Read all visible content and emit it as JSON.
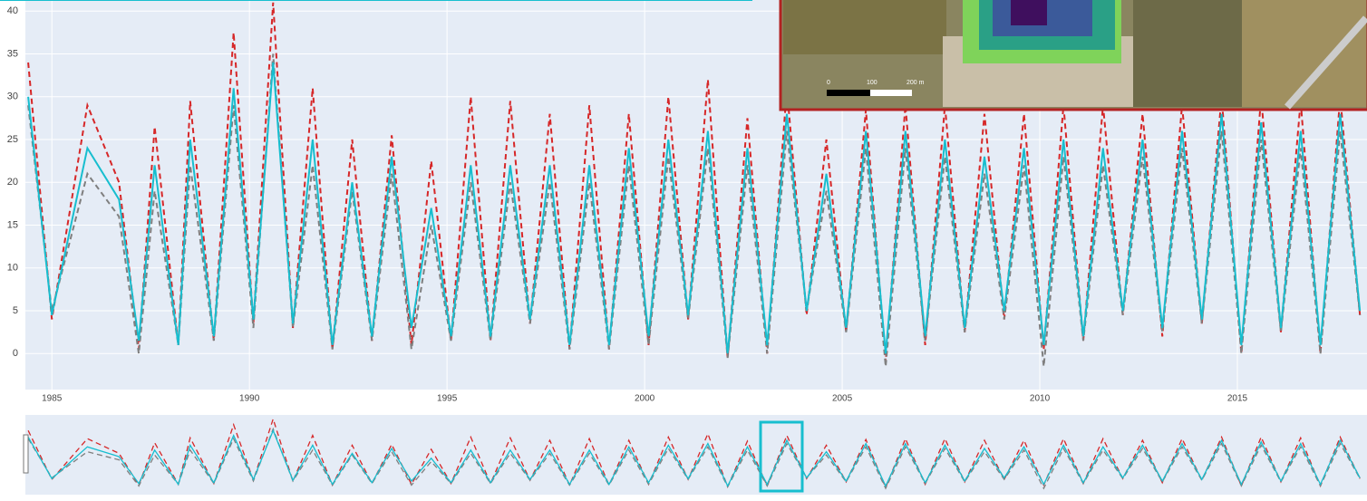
{
  "chart_data": {
    "type": "line",
    "x": [
      1984.4,
      1985.0,
      1985.9,
      1986.7,
      1987.2,
      1987.6,
      1988.2,
      1988.5,
      1989.1,
      1989.6,
      1990.1,
      1990.6,
      1991.1,
      1991.6,
      1992.1,
      1992.6,
      1993.1,
      1993.6,
      1994.1,
      1994.6,
      1995.1,
      1995.6,
      1996.1,
      1996.6,
      1997.1,
      1997.6,
      1998.1,
      1998.6,
      1999.1,
      1999.6,
      2000.1,
      2000.6,
      2001.1,
      2001.6,
      2002.1,
      2002.6,
      2003.1,
      2003.6,
      2004.1,
      2004.6,
      2005.1,
      2005.6,
      2006.1,
      2006.6,
      2007.1,
      2007.6,
      2008.1,
      2008.6,
      2009.1,
      2009.6,
      2010.1,
      2010.6,
      2011.1,
      2011.6,
      2012.1,
      2012.6,
      2013.1,
      2013.6,
      2014.1,
      2014.6,
      2015.1,
      2015.6,
      2016.1,
      2016.6,
      2017.1,
      2017.6,
      2018.1
    ],
    "series": [
      {
        "color": "#d62728",
        "dash": true,
        "values": [
          34,
          4,
          29,
          20,
          0.5,
          26.5,
          1,
          29.5,
          1.5,
          37.5,
          3.5,
          41,
          3,
          31,
          0.5,
          25,
          1.5,
          25.5,
          1,
          22.5,
          1.5,
          30,
          1.5,
          29.5,
          3.5,
          28,
          0.5,
          29,
          0.5,
          28,
          1,
          30,
          4,
          32,
          -0.5,
          27.5,
          0,
          31,
          4.5,
          25,
          2.5,
          28.5,
          -1,
          29,
          1,
          29,
          2.5,
          28,
          4,
          28,
          0.5,
          29,
          1.5,
          29,
          4.5,
          28,
          2,
          29,
          3.5,
          30,
          0,
          30,
          2.5,
          29.5,
          0,
          30,
          4.5
        ]
      },
      {
        "color": "#7f7f7f",
        "dash": true,
        "values": [
          29,
          5,
          21,
          16,
          0,
          19,
          1,
          22,
          1.5,
          29,
          3,
          35,
          3,
          22,
          0.5,
          19,
          1.5,
          21,
          0.5,
          15,
          1.5,
          20,
          1.5,
          20,
          3.5,
          20,
          0.5,
          20,
          0.5,
          22,
          1,
          23,
          4,
          24,
          -0.5,
          22,
          0,
          26,
          5,
          19,
          2.5,
          24,
          -1.5,
          24,
          1.5,
          23,
          2.5,
          21,
          4,
          22,
          -1.5,
          23,
          1.5,
          22,
          4.5,
          23,
          2.5,
          24,
          3.5,
          26,
          0,
          25,
          2.5,
          24,
          0,
          26,
          4.5
        ]
      },
      {
        "color": "#17becf",
        "dash": false,
        "values": [
          30,
          4.5,
          24,
          18,
          1.5,
          22,
          1,
          25,
          2,
          31,
          4,
          34,
          3.5,
          25,
          1,
          20,
          2,
          23,
          3,
          17,
          2,
          22,
          2,
          22,
          4,
          22,
          1,
          22,
          1,
          24,
          2,
          25,
          4.5,
          26,
          0,
          24,
          1,
          28,
          5,
          21,
          3,
          26,
          0,
          26,
          2,
          25,
          3,
          23,
          5,
          24,
          1,
          25,
          2,
          24,
          5,
          25,
          3,
          26,
          4,
          28,
          1,
          27,
          3,
          26,
          1,
          28,
          5
        ]
      }
    ],
    "xlim": [
      1984.33,
      2018.28
    ],
    "ylim": [
      -4.2,
      41.3
    ],
    "xticks": [
      1985,
      1990,
      1995,
      2000,
      2005,
      2010,
      2015
    ],
    "yticks": [
      0,
      5,
      10,
      15,
      20,
      25,
      30,
      35,
      40
    ],
    "grid": true,
    "inset": {
      "scale_labels": [
        "0",
        "100",
        "200 m"
      ]
    }
  }
}
